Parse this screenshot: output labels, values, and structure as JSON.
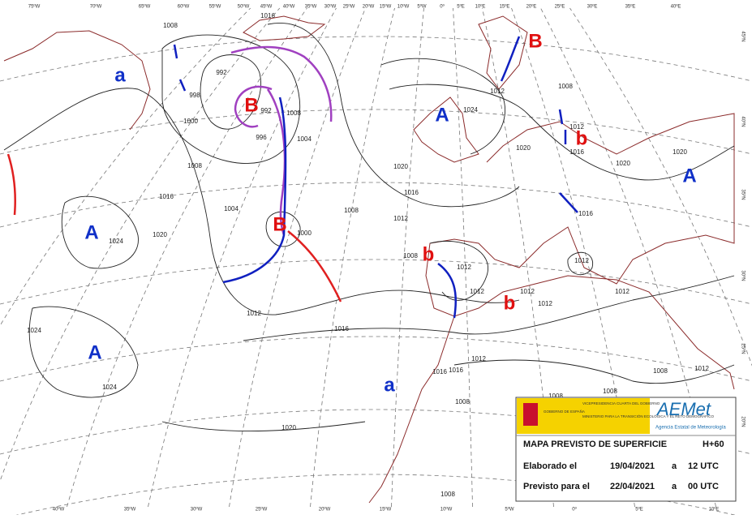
{
  "top_lon_labels": [
    "75ºW",
    "70ºW",
    "65ºW",
    "60ºW",
    "55ºW",
    "50ºW",
    "45ºW",
    "40ºW",
    "35ºW",
    "30ºW",
    "25ºW",
    "20ºW",
    "15ºW",
    "10ºW",
    "5ºW",
    "0º",
    "5ºE",
    "10ºE",
    "15ºE",
    "20ºE",
    "25ºE",
    "30ºE",
    "35ºE",
    "40ºE"
  ],
  "bottom_lon_labels": [
    "40ºW",
    "35ºW",
    "30ºW",
    "25ºW",
    "20ºW",
    "15ºW",
    "10ºW",
    "5ºW",
    "0º",
    "5ºE",
    "10ºE"
  ],
  "right_lat_labels": [
    "45ºN",
    "40ºN",
    "35ºN",
    "30ºN",
    "25ºN",
    "20ºN"
  ],
  "pressure_centers": [
    "a",
    "B",
    "A",
    "B",
    "b",
    "A",
    "A",
    "B",
    "b",
    "b",
    "A",
    "a"
  ],
  "isobar_labels": [
    "1008",
    "992",
    "998",
    "992",
    "1000",
    "996",
    "1008",
    "1004",
    "1008",
    "1016",
    "1004",
    "1008",
    "1000",
    "1024",
    "1020",
    "1012",
    "1016",
    "1020",
    "1024",
    "1012",
    "1012",
    "1016",
    "1020",
    "1008",
    "1020",
    "1020",
    "1016",
    "1008",
    "1012",
    "1012",
    "1012",
    "1012",
    "1012",
    "1012",
    "1016",
    "1012",
    "1024",
    "1024",
    "1012",
    "1016",
    "1016",
    "1008",
    "1008",
    "1008",
    "1008",
    "1012",
    "1020",
    "1008",
    "1016"
  ],
  "info_box": {
    "gov_1": "VICEPRESIDENCIA CUARTA DEL GOBIERNO",
    "gov_2": "GOBIERNO DE ESPAÑA",
    "gov_3": "MINISTERIO PARA LA TRANSICIÓN ECOLÓGICA Y EL RETO DEMOGRÁFICO",
    "logo": "AEMet",
    "agency": "Agencia Estatal de Meteorología",
    "title": "MAPA PREVISTO DE SUPERFICIE",
    "lead": "H+60",
    "made_label": "Elaborado el",
    "made_date": "19/04/2021",
    "made_at": "a",
    "made_time": "12 UTC",
    "valid_label": "Previsto para el",
    "valid_date": "22/04/2021",
    "valid_at": "a",
    "valid_time": "00 UTC"
  }
}
